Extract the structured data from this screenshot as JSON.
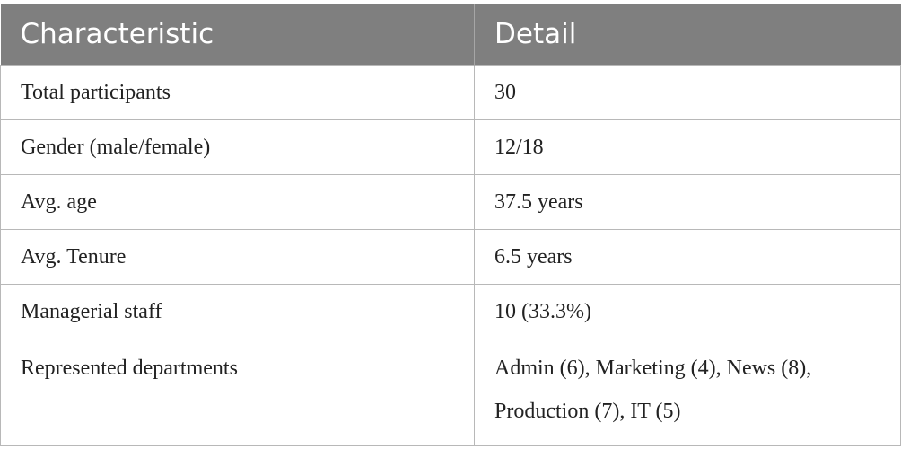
{
  "table": {
    "headers": [
      "Characteristic",
      "Detail"
    ],
    "rows": [
      {
        "characteristic": "Total participants",
        "detail": "30"
      },
      {
        "characteristic": "Gender (male/female)",
        "detail": "12/18"
      },
      {
        "characteristic": "Avg. age",
        "detail": "37.5 years"
      },
      {
        "characteristic": "Avg. Tenure",
        "detail": "6.5 years"
      },
      {
        "characteristic": "Managerial staff",
        "detail": "10 (33.3%)"
      },
      {
        "characteristic": "Represented departments",
        "detail": "Admin (6), Marketing (4), News (8), Production (7), IT (5)"
      }
    ]
  },
  "colors": {
    "header_bg": "#7f7f7f",
    "header_text": "#ffffff",
    "grid": "#b8b8b8"
  }
}
